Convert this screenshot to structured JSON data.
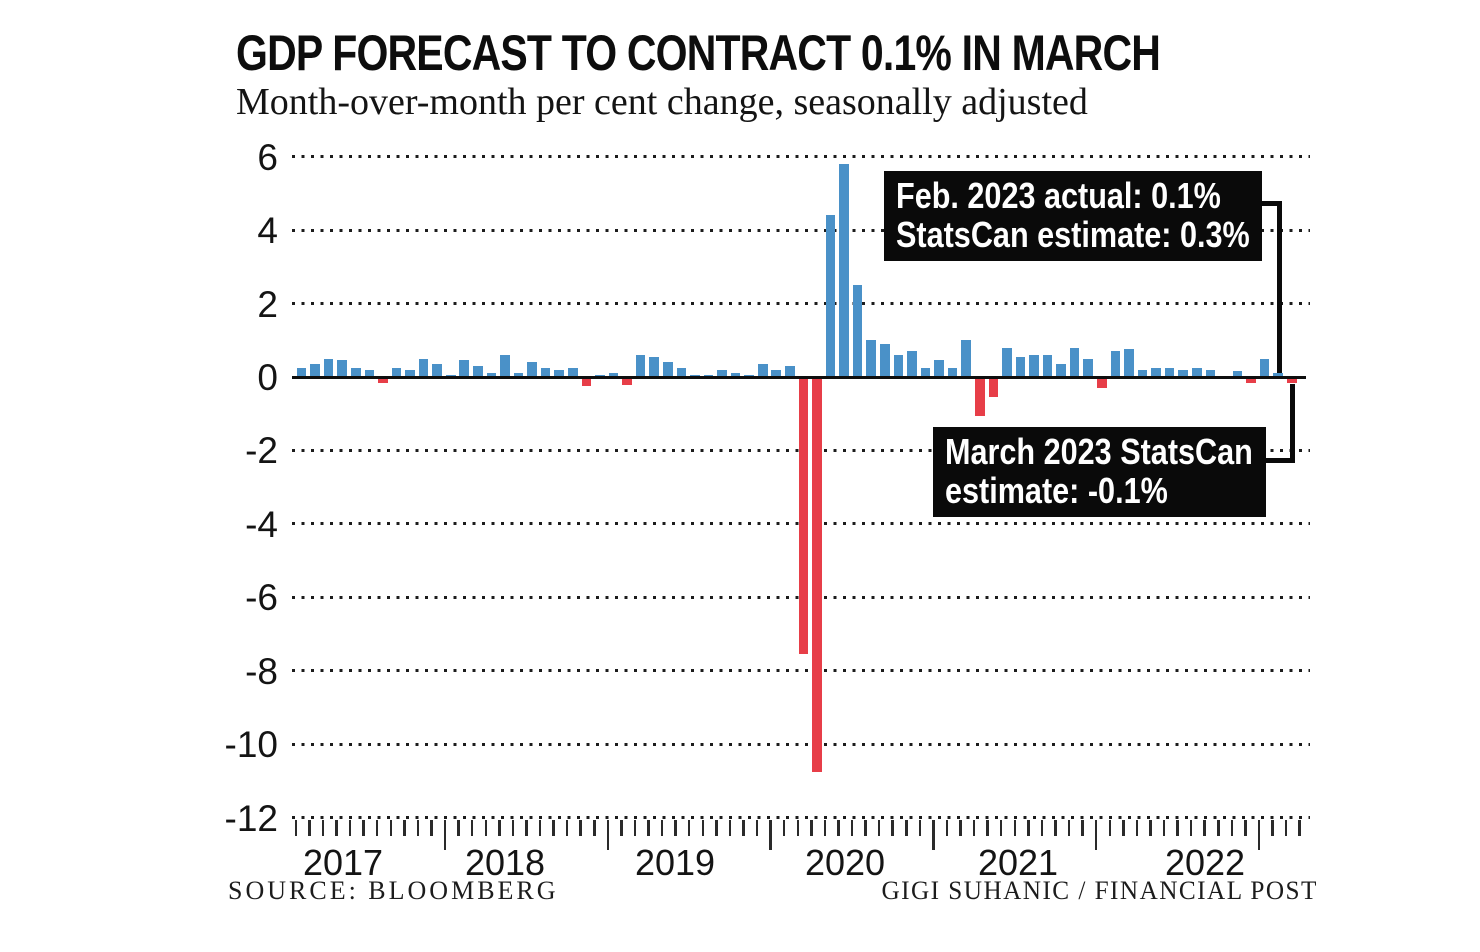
{
  "header": {
    "title": "GDP FORECAST TO CONTRACT 0.1% IN MARCH",
    "subtitle": "Month-over-month per cent change, seasonally adjusted"
  },
  "annotations": {
    "feb_box": {
      "line1": "Feb. 2023 actual: 0.1%",
      "line2": "StatsCan estimate: 0.3%"
    },
    "march_box": {
      "line1": "March 2023 StatsCan",
      "line2": "estimate: -0.1%"
    }
  },
  "footer": {
    "source": "SOURCE: BLOOMBERG",
    "credit": "GIGI SUHANIC / FINANCIAL POST"
  },
  "chart_data": {
    "type": "bar",
    "title": "GDP FORECAST TO CONTRACT 0.1% IN MARCH",
    "subtitle": "Month-over-month per cent change, seasonally adjusted",
    "ylabel": "per cent change, month-over-month, seasonally adjusted",
    "ylim": [
      -12,
      6
    ],
    "y_ticks": [
      6,
      4,
      2,
      0,
      -2,
      -4,
      -6,
      -8,
      -10,
      -12
    ],
    "grid": "dotted horizontal gridlines, solid zero line",
    "legend_position": "none",
    "positive_color": "#4a91c8",
    "negative_color": "#e73e48",
    "x_year_labels": [
      "2017",
      "2018",
      "2019",
      "2020",
      "2021",
      "2022"
    ],
    "start_month": "Feb 2017",
    "end_month": "Mar 2023",
    "months_per_year_note": "one bar per month; values in per cent",
    "values": [
      0.25,
      0.35,
      0.5,
      0.45,
      0.25,
      0.2,
      -0.1,
      0.25,
      0.2,
      0.5,
      0.35,
      0.05,
      0.45,
      0.3,
      0.1,
      0.6,
      0.1,
      0.4,
      0.25,
      0.2,
      0.25,
      -0.2,
      0.05,
      0.1,
      -0.15,
      0.6,
      0.55,
      0.4,
      0.25,
      0.05,
      0.05,
      0.2,
      0.1,
      0.05,
      0.35,
      0.2,
      0.3,
      -7.5,
      -10.7,
      4.4,
      5.8,
      2.5,
      1.0,
      0.9,
      0.6,
      0.7,
      0.25,
      0.45,
      0.25,
      1.0,
      -1.0,
      -0.5,
      0.8,
      0.55,
      0.6,
      0.6,
      0.35,
      0.8,
      0.5,
      -0.25,
      0.7,
      0.75,
      0.2,
      0.25,
      0.25,
      0.2,
      0.25,
      0.2,
      0.0,
      0.15,
      -0.1,
      0.5,
      0.1,
      -0.1
    ],
    "highlighted_points": {
      "feb_2023_actual": 0.1,
      "feb_2023_statscan_estimate": 0.3,
      "march_2023_statscan_estimate": -0.1
    }
  }
}
